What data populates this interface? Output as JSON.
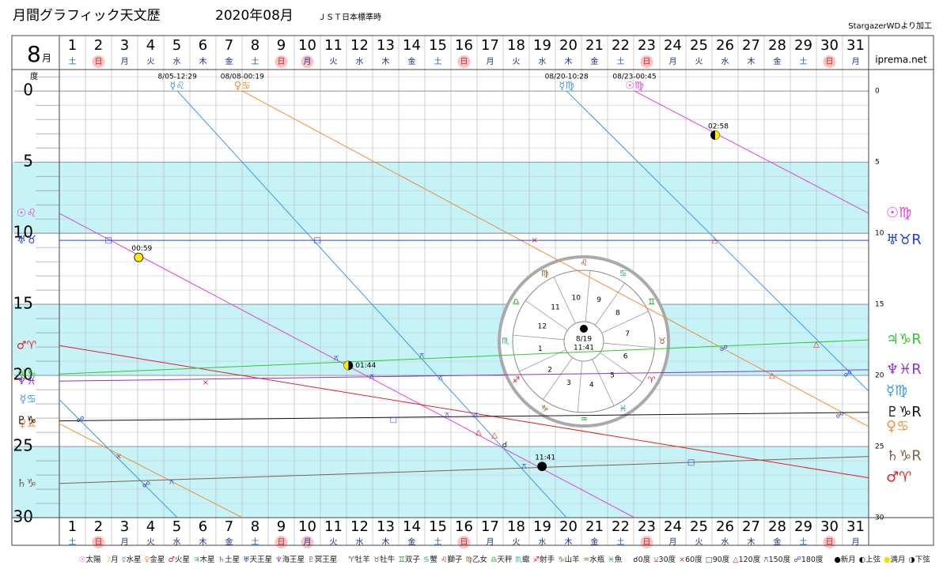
{
  "header": {
    "title": "月間グラフィック天文歴",
    "month_title": "2020年08月",
    "timezone": "ＪＳＴ日本標準時",
    "credit": "StargazerWDより加工",
    "site": "iprema.net",
    "month_number": "8",
    "month_suffix": "月",
    "degree_unit": "度"
  },
  "chart_data": {
    "type": "line",
    "xlim": [
      1,
      32
    ],
    "ylim": [
      -1.4,
      30
    ],
    "yticks": [
      0,
      5,
      10,
      15,
      20,
      25,
      30
    ],
    "grid": true,
    "bands": [
      [
        5,
        10
      ],
      [
        15,
        20
      ],
      [
        25,
        30
      ]
    ],
    "band_color": "#c6f3f8",
    "categories": [
      "1",
      "2",
      "3",
      "4",
      "5",
      "6",
      "7",
      "8",
      "9",
      "10",
      "11",
      "12",
      "13",
      "14",
      "15",
      "16",
      "17",
      "18",
      "19",
      "20",
      "21",
      "22",
      "23",
      "24",
      "25",
      "26",
      "27",
      "28",
      "29",
      "30",
      "31"
    ],
    "weekdays": [
      "土",
      "日",
      "月",
      "火",
      "水",
      "木",
      "金",
      "土",
      "日",
      "月",
      "火",
      "水",
      "木",
      "金",
      "土",
      "日",
      "月",
      "火",
      "水",
      "木",
      "金",
      "土",
      "日",
      "月",
      "火",
      "水",
      "木",
      "金",
      "土",
      "日",
      "月"
    ],
    "holidays": [
      false,
      true,
      false,
      false,
      false,
      false,
      false,
      false,
      true,
      true,
      false,
      false,
      false,
      false,
      false,
      true,
      false,
      false,
      false,
      false,
      false,
      false,
      true,
      false,
      false,
      false,
      false,
      false,
      false,
      true,
      false
    ],
    "weekday_colors": {
      "土": "#1560d8",
      "日": "#e02020"
    },
    "weekday_default_color": "#1a2a8a",
    "holiday_color": "#f8c4c4",
    "series": [
      {
        "label_start": "☉♌",
        "label_end": "☉♍",
        "color": "#e040e0",
        "x": [
          1,
          23.03,
          null,
          23.03,
          32
        ],
        "values": [
          8.6,
          30,
          null,
          0,
          8.6
        ],
        "ingress": [
          {
            "x": 23.03,
            "date": "08/23-00:45",
            "glyph": "☉♍"
          }
        ]
      },
      {
        "label_start": "☿♋",
        "label_end": "☿♍",
        "color": "#3a9ae8",
        "x": [
          1,
          5.52,
          null,
          5.52,
          20.43,
          null,
          20.43,
          32
        ],
        "values": [
          21.7,
          30,
          null,
          0,
          30,
          null,
          0,
          21.1
        ],
        "ingress": [
          {
            "x": 5.52,
            "date": "8/05-12:29",
            "glyph": "☿♌"
          },
          {
            "x": 20.43,
            "date": "08/20-10:28",
            "glyph": "☿♍"
          }
        ]
      },
      {
        "label_start": "♀♊",
        "label_end": "♀♋",
        "color": "#f09030",
        "x": [
          1,
          8.01,
          null,
          8.01,
          32
        ],
        "values": [
          23.4,
          30,
          null,
          0,
          23.6
        ],
        "ingress": [
          {
            "x": 8.01,
            "date": "08/08-00:19",
            "glyph": "♀♋"
          }
        ]
      },
      {
        "label_start": "♂♈",
        "label_end": "♂♈",
        "color": "#e02020",
        "x": [
          1,
          32
        ],
        "values": [
          17.9,
          27.2
        ]
      },
      {
        "label_start": "♃♑",
        "label_end": "♃♑R",
        "color": "#30c830",
        "x": [
          1,
          32
        ],
        "values": [
          19.9,
          17.5
        ]
      },
      {
        "label_start": "♄♑",
        "label_end": "♄♑R",
        "color": "#806050",
        "x": [
          1,
          32
        ],
        "values": [
          27.6,
          25.7
        ]
      },
      {
        "label_start": "♅♉",
        "label_end": "♅♉R",
        "color": "#2040e0",
        "x": [
          1,
          32
        ],
        "values": [
          10.5,
          10.5
        ]
      },
      {
        "label_start": "♆♓",
        "label_end": "♆♓R",
        "color": "#9030d0",
        "x": [
          1,
          32
        ],
        "values": [
          20.4,
          19.6
        ]
      },
      {
        "label_start": "♇♑",
        "label_end": "♇♑R",
        "color": "#111111",
        "x": [
          1,
          32
        ],
        "values": [
          23.2,
          22.6
        ]
      }
    ],
    "moon_phases": [
      {
        "x": 4.04,
        "y": 11.7,
        "style": "full",
        "label": "00:59"
      },
      {
        "x": 12.07,
        "y": 19.3,
        "style": "last",
        "label": "01:44"
      },
      {
        "x": 19.49,
        "y": 26.4,
        "style": "new",
        "label": "11:41"
      },
      {
        "x": 26.12,
        "y": 3.1,
        "style": "first",
        "label": "02:58"
      }
    ],
    "aspects": [
      {
        "x": 2.88,
        "y": 10.5,
        "symbol": "□",
        "color": "#2040e0"
      },
      {
        "x": 10.88,
        "y": 10.5,
        "symbol": "□",
        "color": "#2040e0"
      },
      {
        "x": 19.2,
        "y": 10.5,
        "symbol": "×",
        "color": "#e02020"
      },
      {
        "x": 26.1,
        "y": 10.5,
        "symbol": "△",
        "color": "#e02020"
      },
      {
        "x": 26.45,
        "y": 18.1,
        "symbol": "☍",
        "color": "#2040e0"
      },
      {
        "x": 30.0,
        "y": 17.8,
        "symbol": "△",
        "color": "#e02020"
      },
      {
        "x": 28.3,
        "y": 20.0,
        "symbol": "△",
        "color": "#e02020"
      },
      {
        "x": 31.2,
        "y": 19.9,
        "symbol": "☍",
        "color": "#2040e0"
      },
      {
        "x": 13.8,
        "y": 23.1,
        "symbol": "□",
        "color": "#2040e0"
      },
      {
        "x": 30.9,
        "y": 22.8,
        "symbol": "☍",
        "color": "#2040e0"
      },
      {
        "x": 1.8,
        "y": 23.1,
        "symbol": "☍",
        "color": "#2040e0"
      },
      {
        "x": 3.27,
        "y": 25.7,
        "symbol": "×",
        "color": "#e02020"
      },
      {
        "x": 4.33,
        "y": 27.7,
        "symbol": "☍",
        "color": "#2040e0"
      },
      {
        "x": 5.3,
        "y": 27.5,
        "symbol": "⚻",
        "color": "#2040e0"
      },
      {
        "x": 6.6,
        "y": 20.5,
        "symbol": "×",
        "color": "#e02020"
      },
      {
        "x": 11.6,
        "y": 18.8,
        "symbol": "⚻",
        "color": "#2040e0"
      },
      {
        "x": 12.97,
        "y": 20.1,
        "symbol": "⚻",
        "color": "#2040e0"
      },
      {
        "x": 14.88,
        "y": 18.6,
        "symbol": "⚻",
        "color": "#2040e0"
      },
      {
        "x": 15.6,
        "y": 20.2,
        "symbol": "⚻",
        "color": "#2040e0"
      },
      {
        "x": 15.85,
        "y": 22.8,
        "symbol": "⚻",
        "color": "#2040e0"
      },
      {
        "x": 16.94,
        "y": 22.8,
        "symbol": "⚻",
        "color": "#2040e0"
      },
      {
        "x": 17.06,
        "y": 24.0,
        "symbol": "△",
        "color": "#e02020"
      },
      {
        "x": 17.67,
        "y": 24.2,
        "symbol": "△",
        "color": "#e02020"
      },
      {
        "x": 18.06,
        "y": 24.9,
        "symbol": "☌",
        "color": "#111111"
      },
      {
        "x": 18.8,
        "y": 26.4,
        "symbol": "⚻",
        "color": "#2040e0"
      },
      {
        "x": 25.2,
        "y": 26.1,
        "symbol": "□",
        "color": "#2040e0"
      }
    ]
  },
  "wheel": {
    "center_date": "8/19",
    "center_time": "11:41",
    "houses": [
      "1",
      "2",
      "3",
      "4",
      "5",
      "6",
      "7",
      "8",
      "9",
      "10",
      "11",
      "12"
    ],
    "signs": [
      "♈",
      "♉",
      "♊",
      "♋",
      "♌",
      "♍",
      "♎",
      "♏",
      "♐",
      "♑",
      "♒",
      "♓"
    ],
    "sign_colors": [
      "#d02020",
      "#8a5a20",
      "#20a020",
      "#20a0a0",
      "#d02020",
      "#8a5a20",
      "#20a020",
      "#20a0a0",
      "#d02020",
      "#8a5a20",
      "#20a020",
      "#20a0a0"
    ]
  },
  "legend": [
    [
      {
        "symbol": "☉",
        "text": "太陽",
        "color": "#e040e0"
      },
      {
        "symbol": "☽",
        "text": "月",
        "color": "#d0b000"
      },
      {
        "symbol": "☿",
        "text": "水星",
        "color": "#3a9ae8"
      },
      {
        "symbol": "♀",
        "text": "金星",
        "color": "#f09030"
      },
      {
        "symbol": "♂",
        "text": "火星",
        "color": "#e02020"
      },
      {
        "symbol": "♃",
        "text": "木星",
        "color": "#30c830"
      },
      {
        "symbol": "♄",
        "text": "土星",
        "color": "#806050"
      },
      {
        "symbol": "♅",
        "text": "天王星",
        "color": "#2040e0"
      },
      {
        "symbol": "♆",
        "text": "海王星",
        "color": "#9030d0"
      },
      {
        "symbol": "♇",
        "text": "冥王星",
        "color": "#806050"
      }
    ],
    [
      {
        "symbol": "♈",
        "text": "牡羊",
        "color": "#d02020"
      },
      {
        "symbol": "♉",
        "text": "牡牛",
        "color": "#8a5a20"
      },
      {
        "symbol": "♊",
        "text": "双子",
        "color": "#20a020"
      },
      {
        "symbol": "♋",
        "text": "蟹",
        "color": "#20a0a0"
      },
      {
        "symbol": "♌",
        "text": "獅子",
        "color": "#d02020"
      },
      {
        "symbol": "♍",
        "text": "乙女",
        "color": "#8a5a20"
      },
      {
        "symbol": "♎",
        "text": "天秤",
        "color": "#20a020"
      },
      {
        "symbol": "♏",
        "text": "蠍",
        "color": "#20a0a0"
      },
      {
        "symbol": "♐",
        "text": "射手",
        "color": "#d02020"
      },
      {
        "symbol": "♑",
        "text": "山羊",
        "color": "#8a5a20"
      },
      {
        "symbol": "♒",
        "text": "水瓶",
        "color": "#20a020"
      },
      {
        "symbol": "♓",
        "text": "魚",
        "color": "#20a0a0"
      }
    ],
    [
      {
        "symbol": "☌",
        "text": "0度",
        "color": "#111111"
      },
      {
        "symbol": "⚺",
        "text": "30度",
        "color": "#e02020"
      },
      {
        "symbol": "×",
        "text": "60度",
        "color": "#e02020"
      },
      {
        "symbol": "□",
        "text": "90度",
        "color": "#2040e0"
      },
      {
        "symbol": "△",
        "text": "120度",
        "color": "#e02020"
      },
      {
        "symbol": "⚻",
        "text": "150度",
        "color": "#2040e0"
      },
      {
        "symbol": "☍",
        "text": "180度",
        "color": "#2040e0"
      }
    ],
    [
      {
        "symbol": "●",
        "text": "新月",
        "color": "#000000"
      },
      {
        "symbol": "◐",
        "text": "上弦",
        "color": "#000000"
      },
      {
        "symbol": "●",
        "text": "満月",
        "color": "#f0e000"
      },
      {
        "symbol": "◑",
        "text": "下弦",
        "color": "#000000"
      }
    ]
  ]
}
